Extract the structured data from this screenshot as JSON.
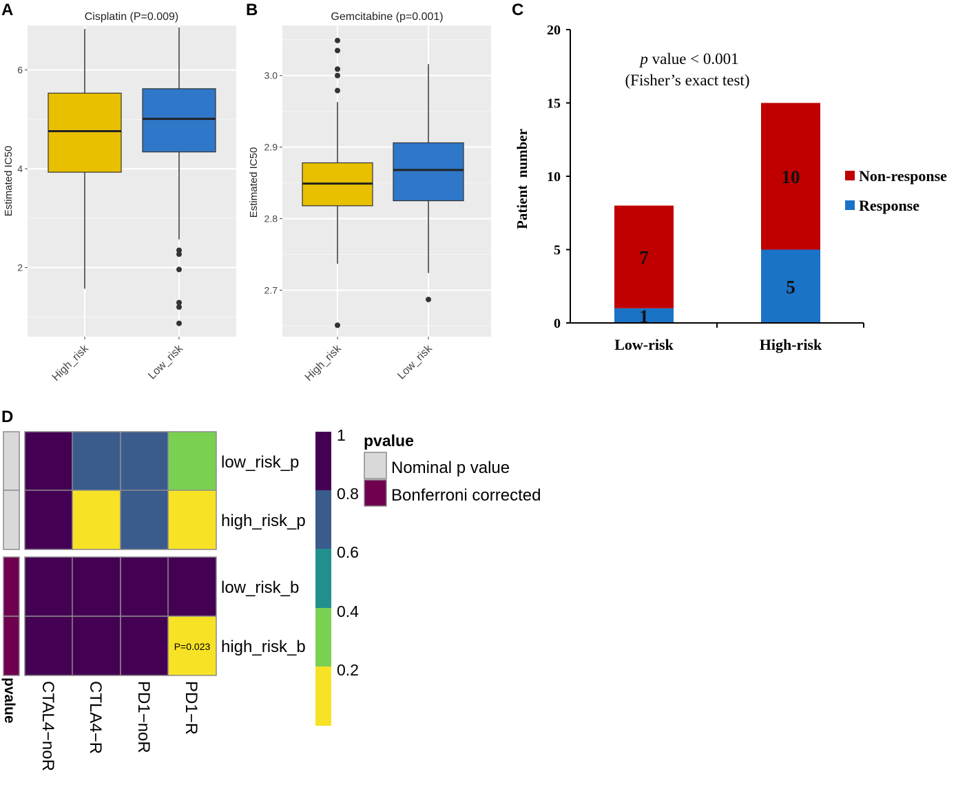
{
  "chart_data": [
    {
      "panel": "A",
      "type": "box",
      "title": "Cisplatin (P=0.009)",
      "ylabel": "Estimated IC50",
      "ylim": [
        0.6,
        6.9
      ],
      "yticks": [
        2,
        4,
        6
      ],
      "categories": [
        "High_risk",
        "Low_risk"
      ],
      "boxes": [
        {
          "name": "High_risk",
          "min": 1.57,
          "q1": 3.93,
          "median": 4.76,
          "q3": 5.53,
          "max": 6.83,
          "outliers": [],
          "color": "#e8c000"
        },
        {
          "name": "Low_risk",
          "min": 2.57,
          "q1": 4.34,
          "median": 5.01,
          "q3": 5.62,
          "max": 6.86,
          "outliers": [
            2.35,
            2.27,
            1.96,
            1.29,
            1.2,
            0.87
          ],
          "color": "#2f77c8"
        }
      ]
    },
    {
      "panel": "B",
      "type": "box",
      "title": "Gemcitabine (p=0.001)",
      "ylabel": "Estimated IC50",
      "ylim": [
        2.635,
        3.07
      ],
      "yticks": [
        2.7,
        2.8,
        2.9,
        3.0
      ],
      "ytick_labels": [
        "2.7",
        "2.8",
        "2.9",
        "3.0"
      ],
      "categories": [
        "High_risk",
        "Low_risk"
      ],
      "boxes": [
        {
          "name": "High_risk",
          "min": 2.737,
          "q1": 2.818,
          "median": 2.849,
          "q3": 2.878,
          "max": 2.963,
          "outliers": [
            3.049,
            3.035,
            3.009,
            3.0,
            2.979,
            2.651
          ],
          "color": "#e8c000"
        },
        {
          "name": "Low_risk",
          "min": 2.724,
          "q1": 2.825,
          "median": 2.868,
          "q3": 2.906,
          "max": 3.016,
          "outliers": [
            2.687
          ],
          "color": "#2f77c8"
        }
      ]
    },
    {
      "panel": "C",
      "type": "bar",
      "stacked": true,
      "ylabel": "Patient  number",
      "ylim": [
        0,
        20
      ],
      "yticks": [
        0,
        5,
        10,
        15,
        20
      ],
      "categories": [
        "Low-risk",
        "High-risk"
      ],
      "series": [
        {
          "name": "Response",
          "values": [
            1,
            5
          ],
          "labels": [
            "1",
            "5"
          ],
          "color": "#1a73c6"
        },
        {
          "name": "Non-response",
          "values": [
            7,
            10
          ],
          "labels": [
            "7",
            "10"
          ],
          "color": "#c00000"
        }
      ],
      "legend": [
        {
          "name": "Non-response",
          "color": "#c00000"
        },
        {
          "name": "Response",
          "color": "#1a73c6"
        }
      ],
      "annotation_p": "p",
      "annotation_rest": " value < 0.001",
      "annotation_line2": "(Fisher’s exact test)"
    },
    {
      "panel": "D",
      "type": "heatmap",
      "rows": [
        "low_risk_p",
        "high_risk_p",
        "low_risk_b",
        "high_risk_b"
      ],
      "columns": [
        "CTAL4−noR",
        "CTLA4−R",
        "PD1−noR",
        "PD1−R"
      ],
      "values": [
        [
          1.0,
          0.8,
          0.8,
          0.3
        ],
        [
          1.0,
          0.1,
          0.8,
          0.1
        ],
        [
          1.0,
          1.0,
          1.0,
          1.0
        ],
        [
          1.0,
          1.0,
          1.0,
          0.023
        ]
      ],
      "cell_annotations": [
        {
          "row": 3,
          "col": 3,
          "text": "P=0.023"
        }
      ],
      "row_groups": [
        "Nominal p value",
        "Nominal p value",
        "Bonferroni corrected",
        "Bonferroni corrected"
      ],
      "annotation_axis_label": "pvalue",
      "colorbar": {
        "ticks": [
          "1",
          "0.8",
          "0.6",
          "0.4",
          "0.2"
        ],
        "colors": [
          "#440154",
          "#3b5b8c",
          "#21908c",
          "#7ad151",
          "#f7e225"
        ]
      },
      "legend": {
        "title": "pvalue",
        "items": [
          {
            "name": "Nominal p value",
            "color": "#d9d9d9"
          },
          {
            "name": "Bonferroni corrected",
            "color": "#6f0050"
          }
        ]
      }
    }
  ],
  "panel_labels": [
    "A",
    "B",
    "C",
    "D"
  ]
}
